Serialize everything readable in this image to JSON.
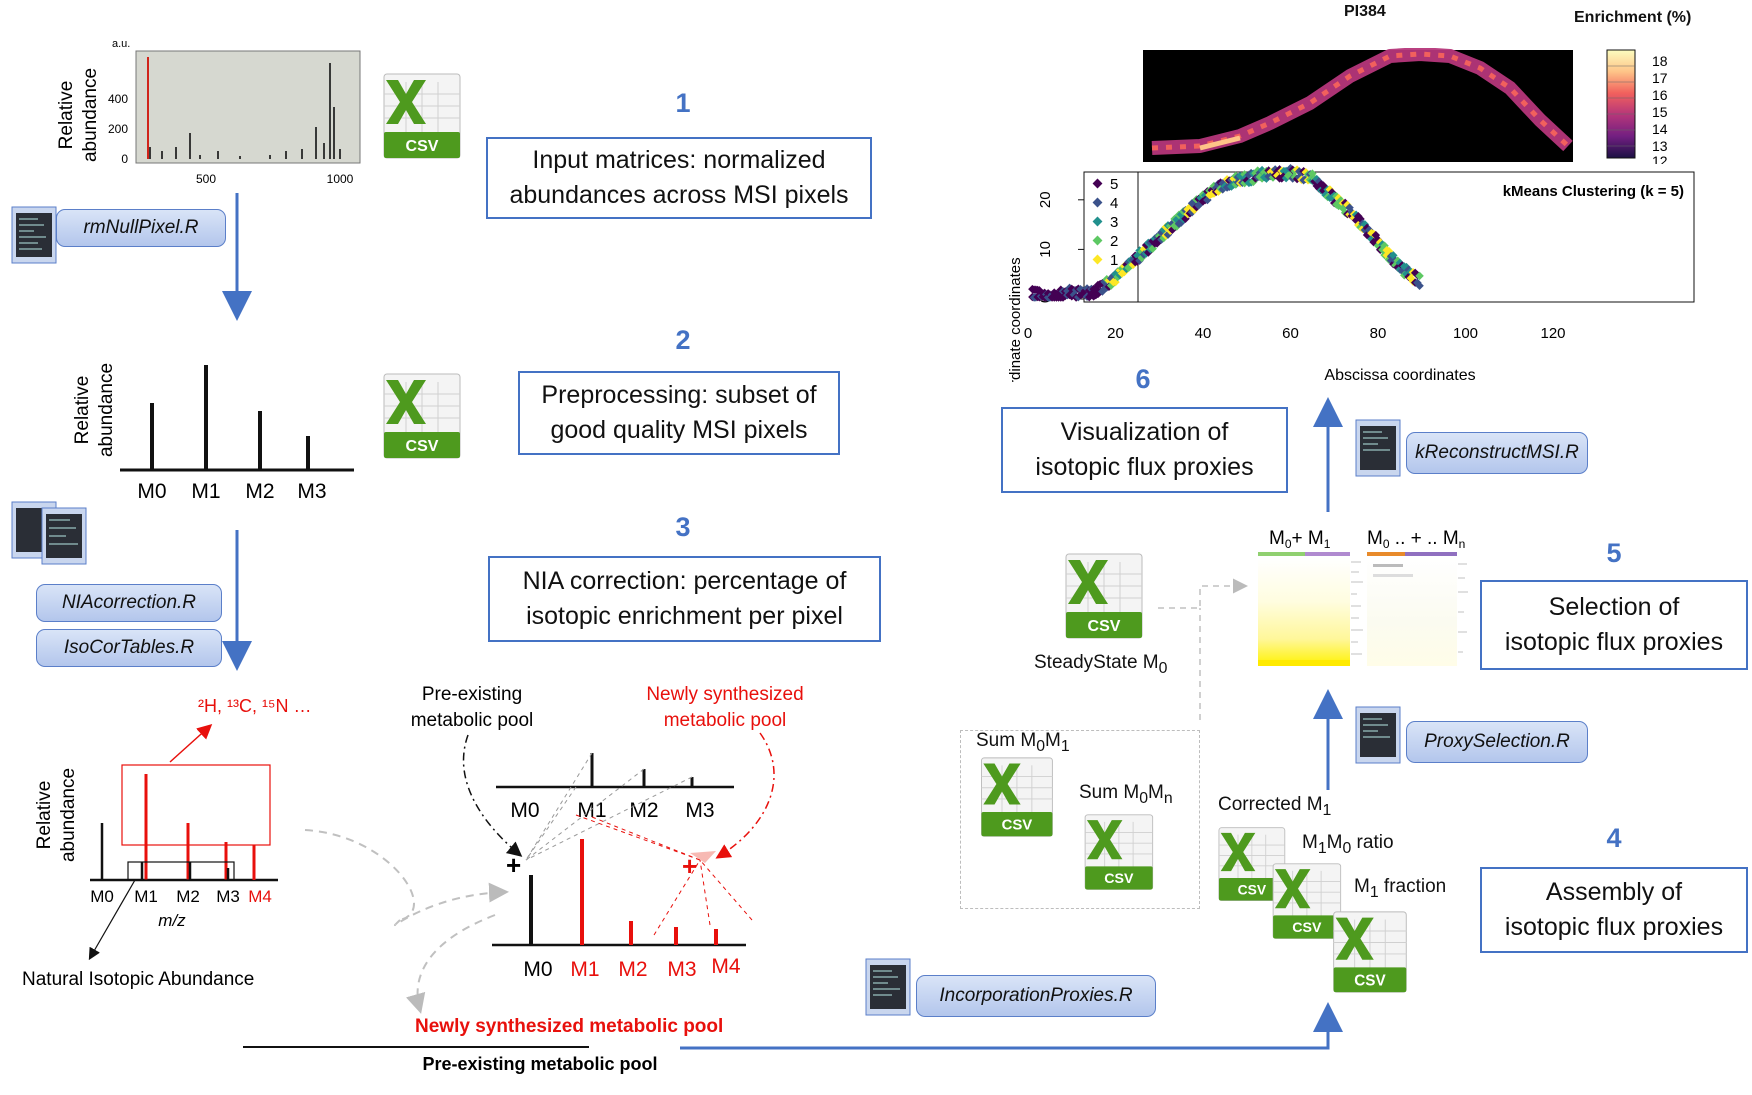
{
  "steps": [
    {
      "num": "1",
      "line1": "Input matrices: normalized",
      "line2": "abundances across MSI pixels"
    },
    {
      "num": "2",
      "line1": "Preprocessing: subset of",
      "line2": "good quality MSI pixels"
    },
    {
      "num": "3",
      "line1": "NIA correction: percentage of",
      "line2": "isotopic enrichment per pixel"
    },
    {
      "num": "4",
      "line1": "Assembly of",
      "line2": "isotopic flux proxies"
    },
    {
      "num": "5",
      "line1": "Selection of",
      "line2": "isotopic flux proxies"
    },
    {
      "num": "6",
      "line1": "Visualization of",
      "line2": "isotopic flux proxies"
    }
  ],
  "scripts": {
    "rmNullPixel": "rmNullPixel.R",
    "niaCorrection": "NIAcorrection.R",
    "isoCorTables": "IsoCorTables.R",
    "incorporationProxies": "IncorporationProxies.R",
    "proxySelection": "ProxySelection.R",
    "kReconstructMSI": "kReconstructMSI.R"
  },
  "csv_label": "CSV",
  "spectrum1": {
    "ylabel_1": "Relative",
    "ylabel_2": "abundance",
    "unit": "a.u.",
    "yticks": [
      "0",
      "200",
      "400"
    ],
    "xticks": [
      "500",
      "1000"
    ]
  },
  "spectrum2": {
    "ylabel_1": "Relative",
    "ylabel_2": "abundance",
    "peaks": [
      "M0",
      "M1",
      "M2",
      "M3"
    ]
  },
  "spectrum3": {
    "ylabel_1": "Relative",
    "ylabel_2": "abundance",
    "peaks_black": [
      "M0",
      "M1",
      "M2",
      "M3"
    ],
    "peak_red": "M4",
    "xlabel": "m/z",
    "isotopes": "²H, ¹³C, ¹⁵N …",
    "nia_label": "Natural Isotopic Abundance"
  },
  "pools": {
    "preexisting_1": "Pre-existing",
    "preexisting_2": "metabolic pool",
    "newly_1": "Newly synthesized",
    "newly_2": "metabolic pool",
    "top_peaks": [
      "M0",
      "M1",
      "M2",
      "M3"
    ],
    "bottom_black": "M0",
    "bottom_red": [
      "M1",
      "M2",
      "M3",
      "M4"
    ],
    "plus": "+",
    "ratio_num": "Newly synthesized metabolic pool",
    "ratio_den": "Pre-existing metabolic pool"
  },
  "heatmap": {
    "title": "PI384",
    "legend_title": "Enrichment (%)",
    "legend_ticks": [
      "18",
      "17",
      "16",
      "15",
      "14",
      "13",
      "12"
    ]
  },
  "chart_data": {
    "type": "scatter",
    "title": "kMeans Clustering (k = 5)",
    "xlabel": "Abscissa coordinates",
    "ylabel": "Ordinate coordinates",
    "xlim": [
      0,
      120
    ],
    "ylim": [
      0,
      25
    ],
    "xticks": [
      "0",
      "20",
      "40",
      "60",
      "80",
      "100",
      "120"
    ],
    "yticks": [
      "0",
      "10",
      "20"
    ],
    "legend_position": "top-left",
    "series": [
      {
        "name": "5",
        "color": "#440154"
      },
      {
        "name": "4",
        "color": "#3b528b"
      },
      {
        "name": "3",
        "color": "#21908d"
      },
      {
        "name": "2",
        "color": "#5dc863"
      },
      {
        "name": "1",
        "color": "#fde725"
      }
    ],
    "points_approx": [
      [
        1,
        2
      ],
      [
        5,
        1
      ],
      [
        10,
        2
      ],
      [
        15,
        2
      ],
      [
        20,
        5
      ],
      [
        25,
        9
      ],
      [
        30,
        13
      ],
      [
        35,
        17
      ],
      [
        40,
        21
      ],
      [
        45,
        24
      ],
      [
        50,
        25
      ],
      [
        55,
        26
      ],
      [
        60,
        26
      ],
      [
        65,
        25
      ],
      [
        70,
        21
      ],
      [
        75,
        17
      ],
      [
        80,
        12
      ],
      [
        85,
        7
      ],
      [
        90,
        4
      ]
    ]
  },
  "selection": {
    "col1_sub": "0",
    "col1_sub2": "1",
    "col2_sub": "0",
    "col2_subn": "n"
  },
  "steady_state": {
    "text": "SteadyState M",
    "sub": "0"
  },
  "sums": {
    "sum01": "Sum M",
    "sum01_a": "0",
    "sum01_b": "M",
    "sum01_c": "1",
    "sum0n": "Sum M",
    "sum0n_a": "0",
    "sum0n_b": "M",
    "sum0n_c": "n"
  },
  "proxies": {
    "corrected": "Corrected M",
    "corrected_sub": "1",
    "ratio": "M",
    "ratio_a": "1",
    "ratio_b": "M",
    "ratio_c": "0",
    "ratio_d": " ratio",
    "fraction": "M",
    "fraction_a": "1",
    "fraction_b": " fraction"
  },
  "colors": {
    "accent": "#4472c4",
    "red": "#e8100c",
    "excel_green": "#4e9a1e"
  }
}
